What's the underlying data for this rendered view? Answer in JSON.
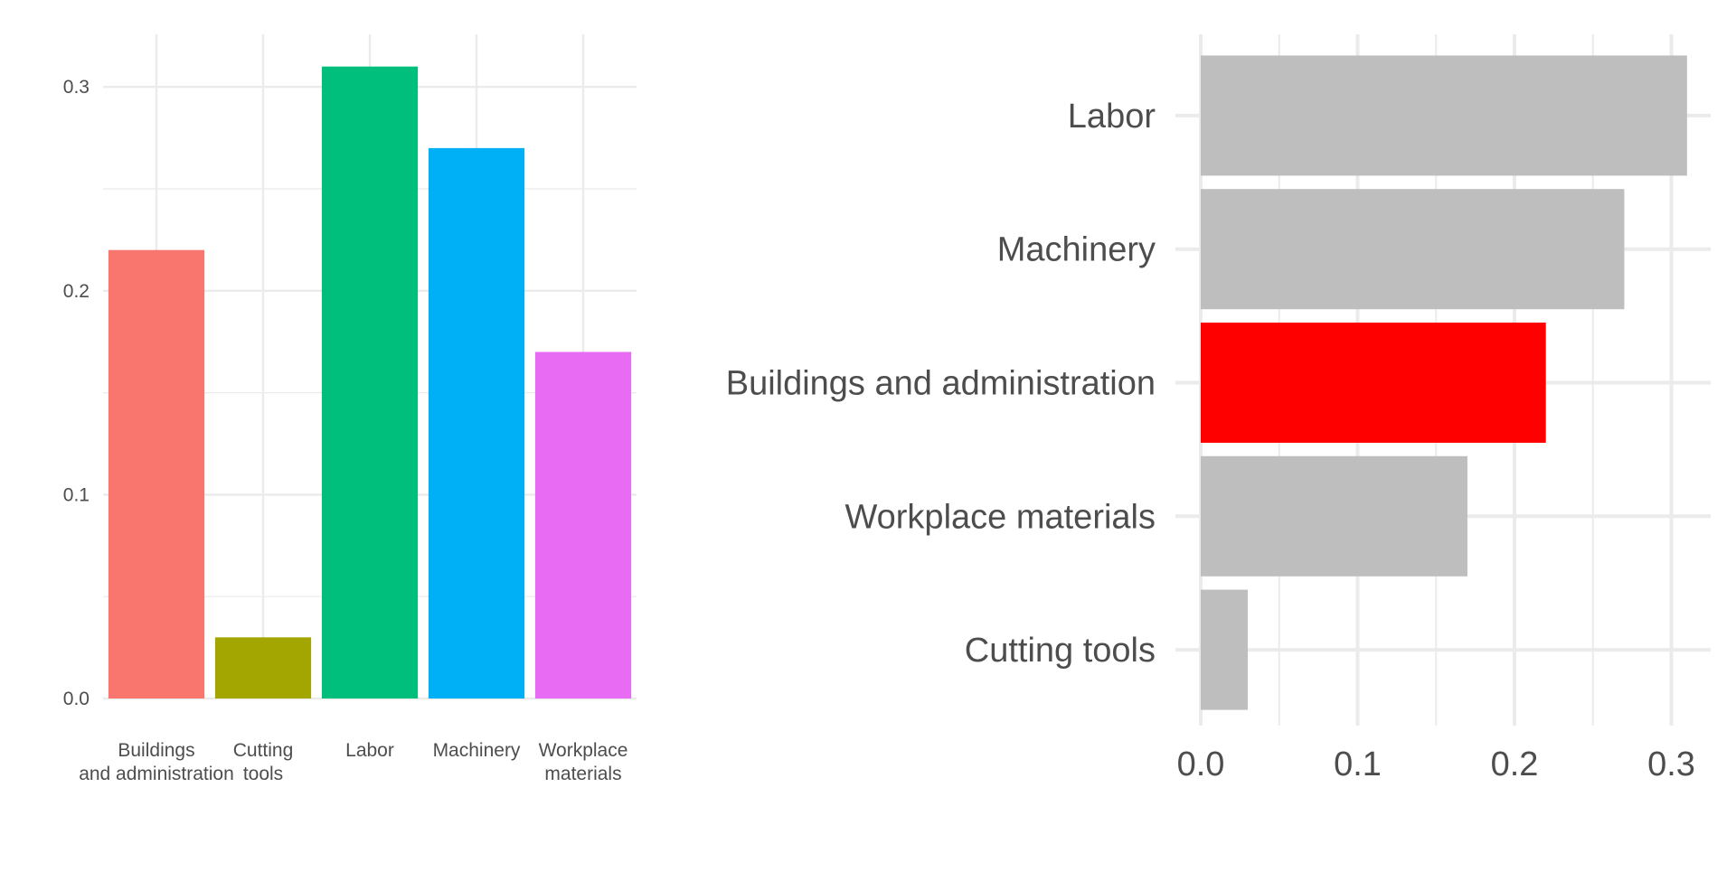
{
  "chart_data": [
    {
      "type": "bar",
      "orientation": "vertical",
      "categories": [
        "Buildings\nand administration",
        "Cutting\ntools",
        "Labor",
        "Machinery",
        "Workplace\nmaterials"
      ],
      "values": [
        0.22,
        0.03,
        0.31,
        0.27,
        0.17
      ],
      "colors": [
        "#F8766D",
        "#A3A500",
        "#00BF7D",
        "#00B0F6",
        "#E76BF3"
      ],
      "ylim": [
        0,
        0.325
      ],
      "yticks": [
        "0.0",
        "0.1",
        "0.2",
        "0.3"
      ],
      "ytick_values": [
        0,
        0.1,
        0.2,
        0.3
      ],
      "grid": true,
      "legend": "none",
      "title": "",
      "xlabel": "",
      "ylabel": ""
    },
    {
      "type": "bar",
      "orientation": "horizontal",
      "categories": [
        "Labor",
        "Machinery",
        "Buildings and administration",
        "Workplace materials",
        "Cutting tools"
      ],
      "values": [
        0.31,
        0.27,
        0.22,
        0.17,
        0.03
      ],
      "colors": [
        "#BEBEBE",
        "#BEBEBE",
        "#FF0000",
        "#BEBEBE",
        "#BEBEBE"
      ],
      "highlight": "Buildings and administration",
      "xlim": [
        0,
        0.325
      ],
      "xticks": [
        "0.0",
        "0.1",
        "0.2",
        "0.3"
      ],
      "xtick_values": [
        0,
        0.1,
        0.2,
        0.3
      ],
      "grid": true,
      "legend": "none",
      "title": "",
      "xlabel": "",
      "ylabel": ""
    }
  ]
}
